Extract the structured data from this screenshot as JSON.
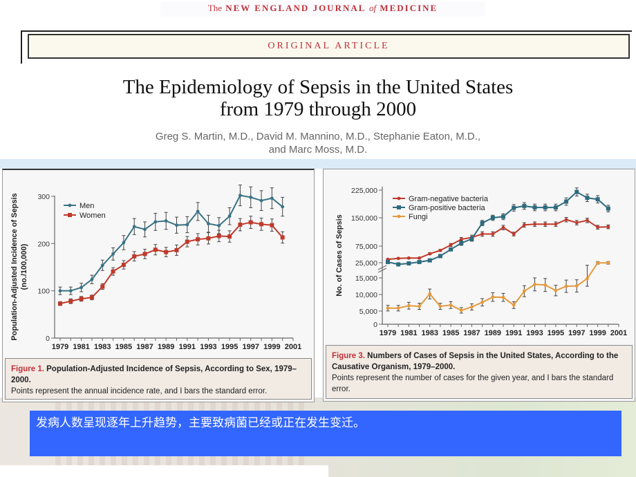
{
  "header": {
    "journal_the": "The",
    "journal_name_1": "NEW ENGLAND JOURNAL",
    "journal_of": "of",
    "journal_name_2": "MEDICINE",
    "section_label": "ORIGINAL ARTICLE",
    "title_line1": "The Epidemiology of Sepsis in the United States",
    "title_line2": "from 1979 through 2000",
    "authors_line1": "Greg S. Martin, M.D., David M. Mannino, M.D., Stephanie Eaton, M.D.,",
    "authors_line2": "and Marc Moss, M.D."
  },
  "figure1": {
    "label": "Figure 1.",
    "title": "Population-Adjusted Incidence of Sepsis, According to Sex, 1979–2000.",
    "description": "Points represent the annual incidence rate, and I bars the standard error."
  },
  "figure3": {
    "label": "Figure 3.",
    "title": "Numbers of Cases of Sepsis in the United States, According to the Causative Organism, 1979–2000.",
    "description": "Points represent the number of cases for the given year, and I bars the standard error."
  },
  "summary_text": "发病人数呈现逐年上升趋势，主要致病菌已经或正在发生变迁。",
  "colors": {
    "men": "#3a7385",
    "women": "#c0392b",
    "gram_negative": "#c0392b",
    "gram_positive": "#2e6b7e",
    "fungi": "#e59a3c",
    "accent_red": "#c0303a",
    "summary_box": "#3366ff"
  },
  "chart_data": [
    {
      "type": "line",
      "title": "Population-Adjusted Incidence of Sepsis, According to Sex, 1979–2000",
      "xlabel": "",
      "ylabel": "Population-Adjusted Incidence of Sepsis (no./100,000)",
      "x": [
        1979,
        1980,
        1981,
        1982,
        1983,
        1984,
        1985,
        1986,
        1987,
        1988,
        1989,
        1990,
        1991,
        1992,
        1993,
        1994,
        1995,
        1996,
        1997,
        1998,
        1999,
        2000
      ],
      "xticks": [
        "1979",
        "1981",
        "1983",
        "1985",
        "1987",
        "1989",
        "1991",
        "1993",
        "1995",
        "1997",
        "1999",
        "2001"
      ],
      "yticks": [
        "0",
        "100",
        "200",
        "300"
      ],
      "ylim": [
        0,
        300
      ],
      "xlim": [
        1979,
        2001
      ],
      "legend_position": "upper left",
      "grid": false,
      "series": [
        {
          "name": "Men",
          "marker": "diamond",
          "values": [
            100,
            100,
            107,
            124,
            154,
            178,
            202,
            236,
            230,
            246,
            248,
            239,
            240,
            268,
            242,
            238,
            258,
            302,
            298,
            291,
            296,
            278
          ],
          "errors": [
            8,
            8,
            9,
            9,
            11,
            13,
            15,
            17,
            16,
            18,
            18,
            17,
            17,
            19,
            18,
            17,
            18,
            22,
            22,
            21,
            22,
            20
          ]
        },
        {
          "name": "Women",
          "marker": "square",
          "values": [
            73,
            78,
            83,
            86,
            109,
            141,
            155,
            173,
            178,
            187,
            182,
            186,
            204,
            209,
            211,
            216,
            215,
            240,
            245,
            241,
            239,
            213
          ],
          "errors": [
            4,
            5,
            5,
            5,
            6,
            8,
            9,
            10,
            10,
            11,
            10,
            11,
            11,
            12,
            12,
            12,
            12,
            13,
            13,
            13,
            13,
            12
          ]
        }
      ]
    },
    {
      "type": "line",
      "title": "Numbers of Cases of Sepsis in the United States, According to the Causative Organism, 1979–2000",
      "xlabel": "",
      "ylabel": "No. of Cases of Sepsis",
      "x": [
        1979,
        1980,
        1981,
        1982,
        1983,
        1984,
        1985,
        1986,
        1987,
        1988,
        1989,
        1990,
        1991,
        1992,
        1993,
        1994,
        1995,
        1996,
        1997,
        1998,
        1999,
        2000
      ],
      "xticks": [
        "1979",
        "1981",
        "1983",
        "1985",
        "1987",
        "1989",
        "1991",
        "1993",
        "1995",
        "1997",
        "1999",
        "2001"
      ],
      "yticks": [
        "0",
        "5,000",
        "10,000",
        "15,000",
        "25,000",
        "75,000",
        "150,000",
        "225,000"
      ],
      "y_axis_break": "between 15,000 and 25,000",
      "ylim": [
        0,
        225000
      ],
      "xlim": [
        1979,
        2001
      ],
      "legend_position": "upper left",
      "grid": false,
      "series": [
        {
          "name": "Gram-negative bacteria",
          "marker": "diamond",
          "values": [
            35000,
            38000,
            39000,
            39000,
            52000,
            62000,
            78000,
            93000,
            98000,
            107000,
            107000,
            124000,
            107000,
            131000,
            133000,
            133000,
            133000,
            145000,
            137000,
            143000,
            125000,
            126000
          ],
          "errors": [
            2000,
            2000,
            2000,
            2000,
            3000,
            3000,
            4000,
            5000,
            6000,
            6000,
            6000,
            6000,
            5000,
            6000,
            6000,
            6000,
            6000,
            6000,
            6000,
            6000,
            5000,
            5000
          ]
        },
        {
          "name": "Gram-positive bacteria",
          "marker": "square",
          "values": [
            27000,
            20000,
            23000,
            27000,
            32000,
            45000,
            65000,
            83000,
            94000,
            136000,
            150000,
            153000,
            177000,
            182000,
            178000,
            178000,
            178000,
            194000,
            220000,
            204000,
            200000,
            175000
          ],
          "errors": [
            2000,
            2000,
            2000,
            2000,
            3000,
            3000,
            4000,
            6000,
            6000,
            7000,
            7000,
            8000,
            9000,
            9000,
            9000,
            9000,
            9000,
            10000,
            11000,
            10000,
            10000,
            9000
          ]
        },
        {
          "name": "Fungi",
          "marker": "diamond",
          "values": [
            5200,
            5200,
            6000,
            5800,
            9800,
            5800,
            6200,
            4500,
            5600,
            7100,
            8800,
            8700,
            6200,
            10700,
            12900,
            12700,
            10900,
            12300,
            12400,
            14800,
            24500,
            24500
          ],
          "errors": [
            900,
            900,
            1100,
            1000,
            1600,
            1000,
            1100,
            900,
            1000,
            1200,
            1400,
            1300,
            1100,
            1800,
            2100,
            2100,
            1700,
            2000,
            2000,
            2500,
            4000,
            4000
          ]
        }
      ]
    }
  ]
}
